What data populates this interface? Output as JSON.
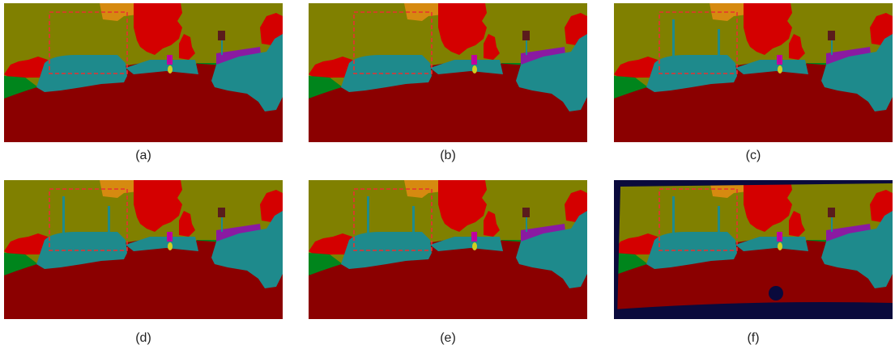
{
  "figure": {
    "panels": [
      {
        "caption": "(a)",
        "variant": "base"
      },
      {
        "caption": "(b)",
        "variant": "base"
      },
      {
        "caption": "(c)",
        "variant": "poles"
      },
      {
        "caption": "(d)",
        "variant": "poles"
      },
      {
        "caption": "(e)",
        "variant": "poles"
      },
      {
        "caption": "(f)",
        "variant": "ground-truth"
      }
    ],
    "colors": {
      "sky": "#808000",
      "road": "#8b0000",
      "car": "#1e8a8c",
      "tree": "#d40000",
      "building": "#d68a10",
      "vegetation": "#00851c",
      "purple": "#8a1aa2",
      "void": "#0a0a3c",
      "magenta": "#c000a0",
      "yellow": "#d0d020",
      "sign": "#5a1c1c",
      "highlight-box": "#e83030"
    }
  }
}
